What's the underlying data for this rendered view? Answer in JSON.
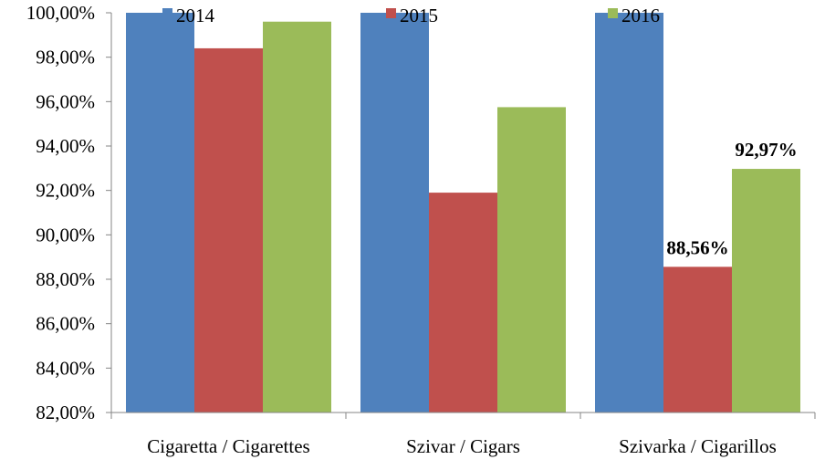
{
  "chart_data": {
    "type": "bar",
    "categories": [
      "Cigaretta / Cigarettes",
      "Szivar / Cigars",
      "Szivarka / Cigarillos"
    ],
    "series": [
      {
        "name": "2014",
        "values": [
          100.0,
          100.0,
          100.0
        ],
        "color": "#4F81BD"
      },
      {
        "name": "2015",
        "values": [
          98.4,
          91.9,
          88.56
        ],
        "color": "#C0504D"
      },
      {
        "name": "2016",
        "values": [
          99.6,
          95.75,
          92.97
        ],
        "color": "#9BBB59"
      }
    ],
    "ylim": [
      82,
      100
    ],
    "y_ticks": [
      {
        "value": 82,
        "label": "82,00%"
      },
      {
        "value": 84,
        "label": "84,00%"
      },
      {
        "value": 86,
        "label": "86,00%"
      },
      {
        "value": 88,
        "label": "88,00%"
      },
      {
        "value": 90,
        "label": "90,00%"
      },
      {
        "value": 92,
        "label": "92,00%"
      },
      {
        "value": 94,
        "label": "94,00%"
      },
      {
        "value": 96,
        "label": "96,00%"
      },
      {
        "value": 98,
        "label": "98,00%"
      },
      {
        "value": 100,
        "label": "100,00%"
      }
    ],
    "data_labels": [
      {
        "series": 1,
        "category": 2,
        "text": "88,56%"
      },
      {
        "series": 2,
        "category": 2,
        "text": "92,97%"
      }
    ],
    "grid": false,
    "legend_position": "top",
    "title": "",
    "xlabel": "",
    "ylabel": ""
  }
}
